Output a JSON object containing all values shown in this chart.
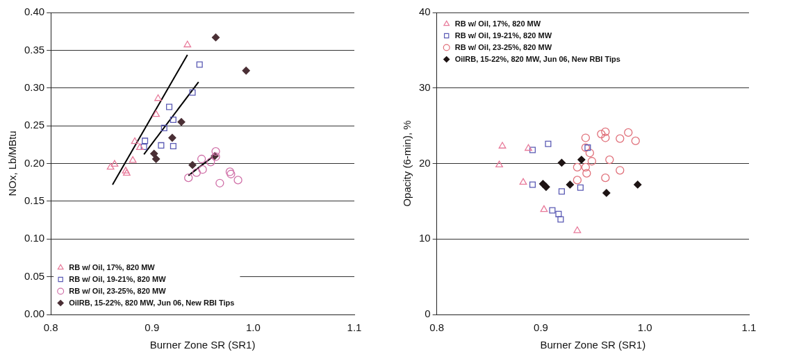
{
  "chart_data": [
    {
      "type": "scatter",
      "xlabel": "Burner Zone SR (SR1)",
      "ylabel": "NOx, Lb/MBtu",
      "xlim": [
        0.8,
        1.1
      ],
      "ylim": [
        0,
        0.4
      ],
      "xticks": [
        {
          "value": 0.8,
          "label": "0.8"
        },
        {
          "value": 0.9,
          "label": "0.9"
        },
        {
          "value": 1.0,
          "label": "1.0"
        },
        {
          "value": 1.1,
          "label": "1.1"
        }
      ],
      "yticks": [
        {
          "value": 0,
          "label": "0.00"
        },
        {
          "value": 0.05,
          "label": "0.05"
        },
        {
          "value": 0.1,
          "label": "0.10"
        },
        {
          "value": 0.15,
          "label": "0.15"
        },
        {
          "value": 0.2,
          "label": "0.20"
        },
        {
          "value": 0.25,
          "label": "0.25"
        },
        {
          "value": 0.3,
          "label": "0.30"
        },
        {
          "value": 0.35,
          "label": "0.35"
        },
        {
          "value": 0.4,
          "label": "0.40"
        }
      ],
      "grid": "y",
      "legend": "bottom left",
      "series": [
        {
          "name": "RB w/ Oil, 17%, 820 MW",
          "color": "#e87a9a",
          "marker": "triangle",
          "x": [
            0.935,
            0.906,
            0.904,
            0.883,
            0.888,
            0.881,
            0.863,
            0.859,
            0.874,
            0.875
          ],
          "values": [
            0.357,
            0.286,
            0.265,
            0.229,
            0.221,
            0.204,
            0.199,
            0.195,
            0.19,
            0.187
          ]
        },
        {
          "name": "RB w/ Oil, 19-21%, 820 MW",
          "color": "#5a5ab4",
          "marker": "square",
          "x": [
            0.947,
            0.94,
            0.917,
            0.921,
            0.912,
            0.893,
            0.892,
            0.909,
            0.921
          ],
          "values": [
            0.331,
            0.294,
            0.275,
            0.258,
            0.247,
            0.23,
            0.222,
            0.224,
            0.223
          ]
        },
        {
          "name": "RB w/ Oil, 23-25%, 820 MW",
          "color": "#d070a8",
          "marker": "circle",
          "x": [
            0.963,
            0.963,
            0.958,
            0.949,
            0.95,
            0.944,
            0.936,
            0.977,
            0.978,
            0.985,
            0.967
          ],
          "values": [
            0.216,
            0.209,
            0.202,
            0.206,
            0.192,
            0.188,
            0.181,
            0.189,
            0.186,
            0.178,
            0.174
          ]
        },
        {
          "name": "OilRB, 15-22%, 820 MW, Jun 06, New RBI Tips",
          "color": "#4a2f35",
          "marker": "diamond",
          "x": [
            0.963,
            0.993,
            0.929,
            0.92,
            0.902,
            0.904,
            0.94,
            0.962
          ],
          "values": [
            0.367,
            0.323,
            0.255,
            0.234,
            0.213,
            0.206,
            0.198,
            0.21
          ]
        },
        {
          "type": "line",
          "color": "#000000",
          "marker": "none",
          "line_style": "solid",
          "x": [
            0.861,
            0.935
          ],
          "values": [
            0.172,
            0.344
          ]
        },
        {
          "type": "line",
          "color": "#000000",
          "marker": "none",
          "line_style": "solid",
          "x": [
            0.892,
            0.946
          ],
          "values": [
            0.212,
            0.308
          ]
        },
        {
          "type": "line",
          "color": "#000000",
          "marker": "none",
          "line_style": "solid",
          "x": [
            0.936,
            0.961
          ],
          "values": [
            0.184,
            0.21
          ]
        }
      ]
    },
    {
      "type": "scatter",
      "xlabel": "Burner Zone SR (SR1)",
      "ylabel": "Opacity (6-min), %",
      "xlim": [
        0.8,
        1.1
      ],
      "ylim": [
        0,
        40
      ],
      "xticks": [
        {
          "value": 0.8,
          "label": "0.8"
        },
        {
          "value": 0.9,
          "label": "0.9"
        },
        {
          "value": 1.0,
          "label": "1.0"
        },
        {
          "value": 1.1,
          "label": "1.1"
        }
      ],
      "yticks": [
        0,
        10,
        20,
        30,
        40
      ],
      "grid": "y",
      "legend": "top left",
      "series": [
        {
          "name": "RB w/ Oil, 17%, 820 MW",
          "color": "#e87a9a",
          "marker": "triangle",
          "x": [
            0.863,
            0.86,
            0.888,
            0.883,
            0.903,
            0.935
          ],
          "values": [
            22.3,
            19.8,
            22.0,
            17.5,
            13.9,
            11.1
          ]
        },
        {
          "name": "RB w/ Oil, 19-21%, 820 MW",
          "color": "#5a5ab4",
          "marker": "square",
          "x": [
            0.892,
            0.907,
            0.945,
            0.892,
            0.92,
            0.938,
            0.911,
            0.917,
            0.919
          ],
          "values": [
            21.8,
            22.6,
            22.1,
            17.2,
            16.3,
            16.8,
            13.8,
            13.3,
            12.6
          ]
        },
        {
          "name": "RB w/ Oil, 23-25%, 820 MW",
          "color": "#e0707a",
          "marker": "circle",
          "x": [
            0.943,
            0.958,
            0.962,
            0.962,
            0.976,
            0.984,
            0.991,
            0.943,
            0.947,
            0.949,
            0.935,
            0.943,
            0.966,
            0.944,
            0.976,
            0.962,
            0.935
          ],
          "values": [
            23.4,
            23.9,
            24.2,
            23.4,
            23.3,
            24.1,
            23.0,
            22.1,
            21.4,
            20.3,
            19.5,
            19.5,
            20.5,
            18.7,
            19.1,
            18.1,
            17.8
          ]
        },
        {
          "name": "OilRB, 15-22%, 820 MW, Jun 06, New RBI Tips",
          "color": "#1e1414",
          "marker": "diamond",
          "x": [
            0.92,
            0.939,
            0.902,
            0.905,
            0.928,
            0.963,
            0.993
          ],
          "values": [
            20.1,
            20.5,
            17.3,
            16.9,
            17.2,
            16.1,
            17.2
          ]
        }
      ]
    }
  ]
}
